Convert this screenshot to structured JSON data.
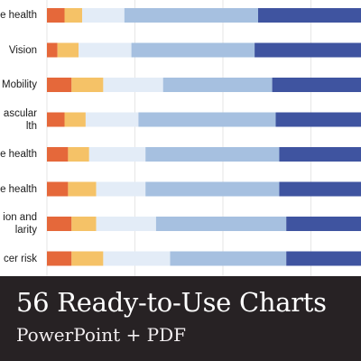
{
  "colors": {
    "seg1": "#e5683a",
    "seg2": "#f5c267",
    "seg3": "#e3ecf7",
    "seg4": "#a6c0e0",
    "seg5": "#3f54a0",
    "banner_bg": "#272224",
    "gridline": "#e6e6e6"
  },
  "chart_data": {
    "type": "bar",
    "orientation": "horizontal",
    "stacked": true,
    "percent": true,
    "xlim": [
      0,
      100
    ],
    "grid": true,
    "categories": [
      "e health",
      "Vision",
      "Mobility",
      "ascular\nlth",
      "e health",
      "e health",
      "ion and\nlarity",
      "cer risk"
    ],
    "series": [
      {
        "values": [
          5,
          3,
          7,
          5,
          6,
          6,
          7,
          7
        ]
      },
      {
        "values": [
          5,
          6,
          9,
          6,
          6,
          8,
          7,
          9
        ]
      },
      {
        "values": [
          12,
          15,
          17,
          15,
          16,
          14,
          17,
          19
        ]
      },
      {
        "values": [
          38,
          35,
          31,
          39,
          38,
          38,
          37,
          33
        ]
      },
      {
        "values": [
          40,
          41,
          36,
          35,
          34,
          34,
          32,
          32
        ]
      }
    ]
  },
  "banner": {
    "title": "56 Ready-to-Use Charts",
    "subtitle": "PowerPoint + PDF"
  }
}
